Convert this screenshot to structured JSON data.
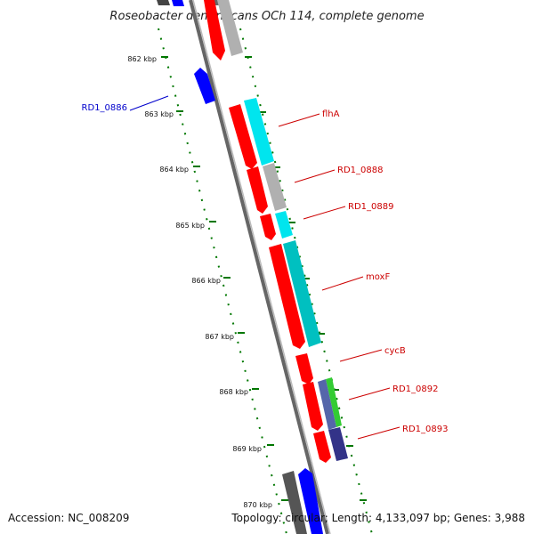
{
  "title": "Roseobacter denitrificans OCh 114, complete genome",
  "footer": {
    "accession": "Accession: NC_008209",
    "stats": "Topology: circular; Length: 4,133,097 bp; Genes: 3,988"
  },
  "kbp_labels": [
    "862 kbp",
    "863 kbp",
    "864 kbp",
    "865 kbp",
    "866 kbp",
    "867 kbp",
    "868 kbp",
    "869 kbp",
    "870 kbp"
  ],
  "gene_labels": [
    {
      "text": "RD1_0886",
      "color": "#0000cc"
    },
    {
      "text": "flhA",
      "color": "#cc0000"
    },
    {
      "text": "RD1_0888",
      "color": "#cc0000"
    },
    {
      "text": "RD1_0889",
      "color": "#cc0000"
    },
    {
      "text": "moxF",
      "color": "#cc0000"
    },
    {
      "text": "cycB",
      "color": "#cc0000"
    },
    {
      "text": "RD1_0892",
      "color": "#cc0000"
    },
    {
      "text": "RD1_0893",
      "color": "#cc0000"
    }
  ],
  "colors": {
    "forward_cds": "#ff0000",
    "reverse_cds": "#0000ff",
    "cog_cyan": "#00e5ee",
    "cog_teal": "#00c0c0",
    "cog_gray": "#b0b0b0",
    "cog_green": "#33cc33",
    "cog_blue": "#5566aa",
    "cog_navy": "#333388",
    "backbone": "#888888",
    "tick": "#007700"
  }
}
